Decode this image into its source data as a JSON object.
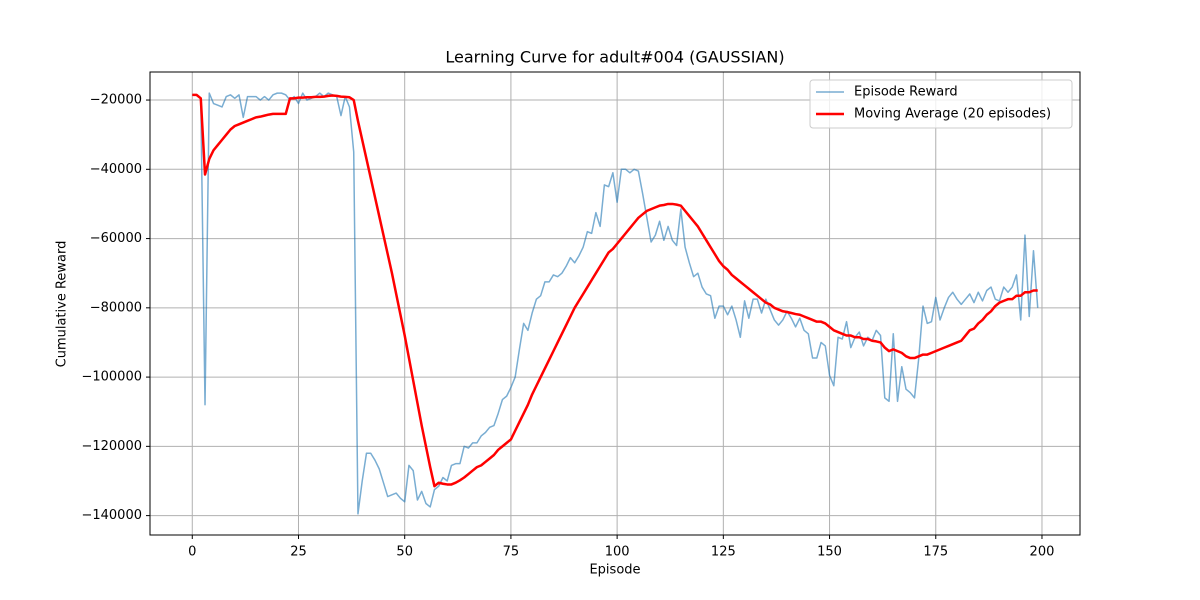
{
  "chart_data": {
    "type": "line",
    "title": "Learning Curve for adult#004 (GAUSSIAN)",
    "xlabel": "Episode",
    "ylabel": "Cumulative Reward",
    "x": [
      0,
      1,
      2,
      3,
      4,
      5,
      6,
      7,
      8,
      9,
      10,
      11,
      12,
      13,
      14,
      15,
      16,
      17,
      18,
      19,
      20,
      21,
      22,
      23,
      24,
      25,
      26,
      27,
      28,
      29,
      30,
      31,
      32,
      33,
      34,
      35,
      36,
      37,
      38,
      39,
      40,
      41,
      42,
      43,
      44,
      45,
      46,
      47,
      48,
      49,
      50,
      51,
      52,
      53,
      54,
      55,
      56,
      57,
      58,
      59,
      60,
      61,
      62,
      63,
      64,
      65,
      66,
      67,
      68,
      69,
      70,
      71,
      72,
      73,
      74,
      75,
      76,
      77,
      78,
      79,
      80,
      81,
      82,
      83,
      84,
      85,
      86,
      87,
      88,
      89,
      90,
      91,
      92,
      93,
      94,
      95,
      96,
      97,
      98,
      99,
      100,
      101,
      102,
      103,
      104,
      105,
      106,
      107,
      108,
      109,
      110,
      111,
      112,
      113,
      114,
      115,
      116,
      117,
      118,
      119,
      120,
      121,
      122,
      123,
      124,
      125,
      126,
      127,
      128,
      129,
      130,
      131,
      132,
      133,
      134,
      135,
      136,
      137,
      138,
      139,
      140,
      141,
      142,
      143,
      144,
      145,
      146,
      147,
      148,
      149,
      150,
      151,
      152,
      153,
      154,
      155,
      156,
      157,
      158,
      159,
      160,
      161,
      162,
      163,
      164,
      165,
      166,
      167,
      168,
      169,
      170,
      171,
      172,
      173,
      174,
      175,
      176,
      177,
      178,
      179,
      180,
      181,
      182,
      183,
      184,
      185,
      186,
      187,
      188,
      189,
      190,
      191,
      192,
      193,
      194,
      195,
      196,
      197,
      198,
      199
    ],
    "series": [
      {
        "name": "Episode Reward",
        "color": "#1f77b4",
        "opacity": 0.6,
        "width": 1.5,
        "values": [
          -18500,
          -18500,
          -19500,
          -108000,
          -18000,
          -21000,
          -21500,
          -22000,
          -19000,
          -18500,
          -19500,
          -18500,
          -25000,
          -19000,
          -19000,
          -19000,
          -20000,
          -19000,
          -20000,
          -18500,
          -18000,
          -18000,
          -18500,
          -20000,
          -19000,
          -21000,
          -18000,
          -20000,
          -19500,
          -19000,
          -18000,
          -19000,
          -18000,
          -18500,
          -19000,
          -24500,
          -19000,
          -22000,
          -35000,
          -139500,
          -130000,
          -122000,
          -122000,
          -124000,
          -126500,
          -130500,
          -134500,
          -134000,
          -133500,
          -135000,
          -136000,
          -125500,
          -127000,
          -135500,
          -133000,
          -136500,
          -137500,
          -132500,
          -131500,
          -129000,
          -130000,
          -125500,
          -125000,
          -125000,
          -120000,
          -120500,
          -119000,
          -119000,
          -117000,
          -116000,
          -114500,
          -114000,
          -110500,
          -106500,
          -105500,
          -103000,
          -100000,
          -92000,
          -84500,
          -86500,
          -81500,
          -77500,
          -76500,
          -72500,
          -72500,
          -70500,
          -71000,
          -70000,
          -68000,
          -65500,
          -67000,
          -65000,
          -62500,
          -58000,
          -58500,
          -52500,
          -56500,
          -44500,
          -45000,
          -41000,
          -49500,
          -40000,
          -40000,
          -41000,
          -40000,
          -40500,
          -47000,
          -54000,
          -61000,
          -59000,
          -55000,
          -60500,
          -56500,
          -60500,
          -62000,
          -51500,
          -62500,
          -67000,
          -71000,
          -70000,
          -74000,
          -76000,
          -76500,
          -83000,
          -79500,
          -79500,
          -82000,
          -79500,
          -83500,
          -88500,
          -78000,
          -83000,
          -77500,
          -77500,
          -81500,
          -77500,
          -80500,
          -83500,
          -85000,
          -83500,
          -81000,
          -83000,
          -85500,
          -83000,
          -86500,
          -87500,
          -94500,
          -94500,
          -90000,
          -91000,
          -99500,
          -102500,
          -88500,
          -89000,
          -84000,
          -91500,
          -88500,
          -87000,
          -91000,
          -88500,
          -89500,
          -86500,
          -88000,
          -106000,
          -107000,
          -87500,
          -107000,
          -97000,
          -103500,
          -104500,
          -106000,
          -94500,
          -79500,
          -84500,
          -84000,
          -77000,
          -83500,
          -80000,
          -77000,
          -75500,
          -77500,
          -79000,
          -77500,
          -76000,
          -78500,
          -75500,
          -78000,
          -75000,
          -74000,
          -77500,
          -78000,
          -74000,
          -75500,
          -74000,
          -70500,
          -83500,
          -59000,
          -82500,
          -63500,
          -80000
        ]
      },
      {
        "name": "Moving Average (20 episodes)",
        "color": "red",
        "opacity": 1,
        "width": 2.5,
        "values": [
          -18500,
          -18500,
          -19500,
          -41500,
          -37000,
          -34500,
          -33000,
          -31500,
          -30000,
          -28500,
          -27500,
          -27000,
          -26500,
          -26000,
          -25500,
          -25000,
          -24800,
          -24500,
          -24200,
          -24000,
          -24000,
          -24000,
          -24000,
          -19500,
          -19500,
          -19300,
          -19300,
          -19200,
          -19200,
          -19100,
          -19100,
          -19000,
          -18800,
          -18700,
          -18800,
          -19000,
          -19100,
          -19200,
          -20000,
          -26000,
          -31500,
          -37000,
          -42500,
          -48000,
          -53500,
          -59000,
          -64500,
          -70000,
          -76000,
          -82000,
          -88000,
          -94500,
          -101000,
          -107500,
          -114000,
          -120000,
          -126000,
          -131500,
          -130500,
          -130800,
          -131000,
          -131000,
          -130500,
          -129800,
          -129000,
          -128000,
          -127000,
          -126000,
          -125500,
          -124500,
          -123500,
          -122500,
          -121000,
          -120000,
          -119000,
          -118000,
          -115500,
          -113000,
          -110500,
          -108000,
          -105000,
          -102500,
          -100000,
          -97500,
          -95000,
          -92500,
          -90000,
          -87500,
          -85000,
          -82500,
          -80000,
          -78000,
          -76000,
          -74000,
          -72000,
          -70000,
          -68000,
          -66000,
          -64000,
          -63000,
          -61500,
          -60000,
          -58500,
          -57000,
          -55500,
          -54000,
          -53000,
          -52000,
          -51500,
          -51000,
          -50500,
          -50300,
          -50000,
          -50000,
          -50200,
          -50500,
          -52000,
          -53500,
          -55000,
          -56500,
          -58500,
          -60500,
          -62500,
          -64500,
          -66500,
          -68000,
          -69000,
          -70500,
          -71500,
          -72500,
          -73500,
          -74500,
          -75500,
          -76500,
          -77500,
          -78500,
          -79000,
          -80000,
          -80500,
          -81000,
          -81200,
          -81500,
          -81800,
          -82000,
          -82500,
          -83000,
          -83500,
          -84000,
          -84000,
          -84500,
          -85500,
          -86500,
          -87000,
          -87500,
          -88000,
          -88000,
          -88500,
          -88500,
          -89000,
          -89000,
          -89500,
          -89700,
          -90000,
          -91500,
          -92500,
          -92000,
          -92500,
          -93000,
          -94000,
          -94500,
          -94500,
          -94000,
          -93500,
          -93500,
          -93000,
          -92500,
          -92000,
          -91500,
          -91000,
          -90500,
          -90000,
          -89500,
          -88000,
          -86500,
          -86000,
          -84500,
          -83500,
          -82000,
          -81000,
          -79500,
          -78500,
          -78000,
          -77500,
          -77500,
          -76500,
          -76500,
          -75500,
          -75500,
          -75000,
          -75000
        ]
      }
    ],
    "xlim": [
      -9.95,
      208.95
    ],
    "xticks": [
      0,
      25,
      50,
      75,
      100,
      125,
      150,
      175,
      200
    ],
    "ylim": [
      -145600,
      -11900
    ],
    "yticks": [
      {
        "value": -140000,
        "label": "−140000"
      },
      {
        "value": -120000,
        "label": "−120000"
      },
      {
        "value": -100000,
        "label": "−100000"
      },
      {
        "value": -80000,
        "label": "−80000"
      },
      {
        "value": -60000,
        "label": "−60000"
      },
      {
        "value": -40000,
        "label": "−40000"
      },
      {
        "value": -20000,
        "label": "−20000"
      }
    ],
    "grid": true,
    "legend": "upper right"
  }
}
